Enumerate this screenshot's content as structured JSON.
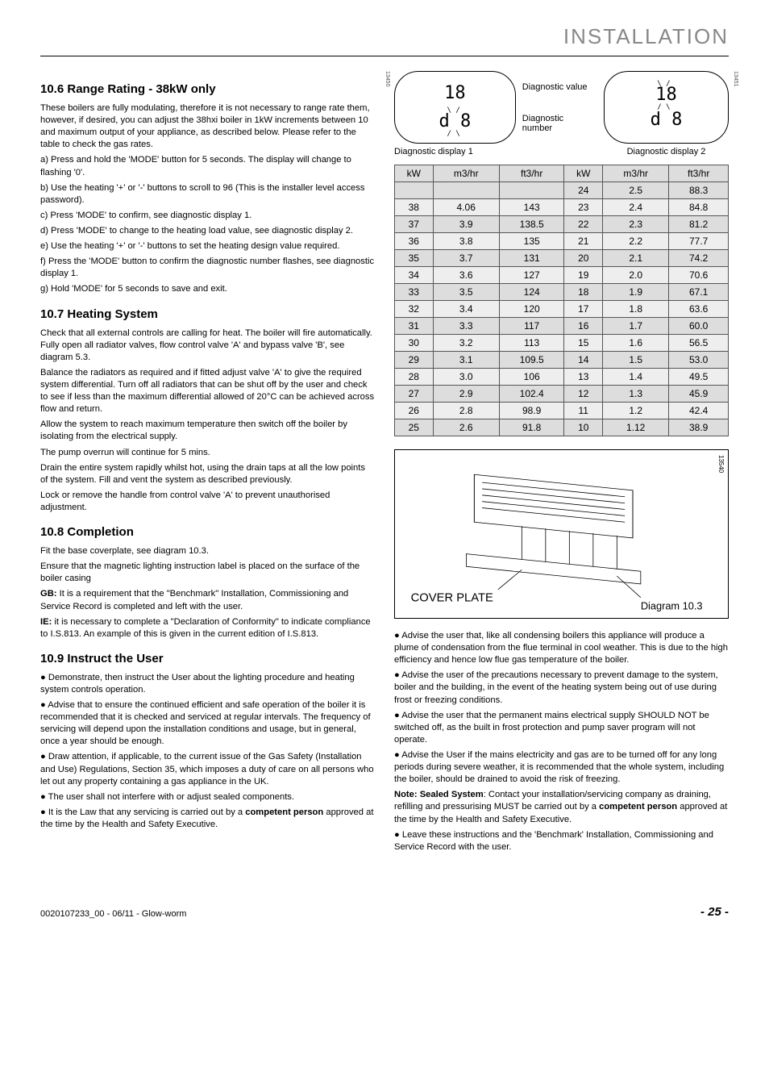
{
  "header": {
    "title": "INSTALLATION"
  },
  "section_10_6": {
    "heading": "10.6 Range Rating - 38kW only",
    "p1": "These boilers are fully modulating, therefore it is not necessary to range rate them, however, if desired, you can adjust the 38hxi boiler in 1kW increments between 10 and maximum output of your appliance, as described below. Please refer to the table to check the gas  rates.",
    "a": "a) Press and hold the  'MODE'  button for 5 seconds.  The display will change to flashing  '0'.",
    "b": "b) Use the heating '+'  or  '-'  buttons to scroll to 96  (This is the installer level access password).",
    "c": "c) Press  'MODE'  to confirm, see diagnostic display 1.",
    "d": "d) Press  'MODE'  to change to the heating load value, see diagnostic display 2.",
    "e": "e) Use the  heating '+'  or  '-'  buttons to set the heating design value required.",
    "f": "f) Press the  'MODE' button to confirm the diagnostic number flashes, see diagnostic display 1.",
    "g": "g) Hold 'MODE' for 5 seconds to save and exit."
  },
  "section_10_7": {
    "heading": "10.7 Heating System",
    "p1": "Check that all external controls are calling for heat.  The boiler will fire automatically. Fully open all radiator valves, flow control valve 'A' and bypass valve 'B', see diagram 5.3.",
    "p2": "Balance the radiators as required and if fitted adjust valve 'A' to give the required system differential. Turn off all radiators that can be shut off by the user and check to see if less than the maximum differential allowed of 20°C can be achieved across flow and return.",
    "p3": "Allow the system to reach maximum temperature then switch off the boiler by isolating from the electrical supply.",
    "p4": "The pump overrun will continue for 5 mins.",
    "p5": "Drain the entire system rapidly whilst hot, using the drain taps at all the low points of the system. Fill and vent the system as described previously.",
    "p6": "Lock or remove the handle from control valve 'A' to prevent unauthorised adjustment."
  },
  "section_10_8": {
    "heading": "10.8 Completion",
    "p1": "Fit the base coverplate, see diagram 10.3.",
    "p2": "Ensure that the magnetic lighting instruction label is placed on the surface of the boiler casing",
    "gb_label": "GB:",
    "gb": " It is a requirement that the \"Benchmark\" Installation, Commissioning and Service Record is completed and left with the user.",
    "ie_label": "IE:",
    "ie": " it is necessary to complete a \"Declaration of Conformity\" to indicate compliance to I.S.813. An example of this is given in the current edition of I.S.813."
  },
  "section_10_9": {
    "heading": "10.9 Instruct the User",
    "b1": "● Demonstrate, then instruct the User about the lighting procedure and heating system controls operation.",
    "b2": "● Advise that to ensure the continued efficient and safe operation of the boiler it is recommended that it is checked and serviced at regular intervals. The frequency of servicing will depend upon the installation conditions and usage, but in general, once a year should be enough.",
    "b3": "● Draw attention, if applicable, to the current issue of the Gas Safety (Installation and Use) Regulations, Section 35, which imposes a duty of care on all persons who let out any property containing a gas appliance in the UK.",
    "b4": "● The user shall not interfere with or adjust sealed components.",
    "b5_pre": "● It is the Law that any servicing is carried out by a ",
    "b5_bold": "competent person",
    "b5_post": " approved at the time by the Health and Safety Executive."
  },
  "right_col": {
    "b1": "● Advise the user that, like all condensing boilers this appliance will produce a plume of condensation from the flue terminal in cool weather. This is due to the high efficiency and hence low flue gas temperature of the boiler.",
    "b2": "● Advise the user of the precautions necessary to prevent damage to the system, boiler and the building, in the event of the heating system being out of use during frost or freezing conditions.",
    "b3": "● Advise the user that the permanent mains electrical supply SHOULD NOT be switched off, as the built in frost protection and pump saver program will not operate.",
    "b4": "● Advise the User if the mains electricity and gas are to be turned off for any long periods during severe weather, it is recommended that the whole system, including the  boiler, should be drained to avoid the risk of freezing.",
    "note_label": "Note: Sealed System",
    "note_post1": ": Contact your installation/servicing company as draining, refilling and pressurising MUST be carried out by a ",
    "note_bold": "competent person",
    "note_post2": " approved at the time by the Health and Safety Executive.",
    "b5": "● Leave these instructions and the 'Benchmark' Installation, Commissioning and Service Record with the user."
  },
  "diagnostics": {
    "side1": "13450",
    "side2": "13451",
    "value_label": "Diagnostic value",
    "number_label": "Diagnostic number",
    "caption1": "Diagnostic display 1",
    "caption2": "Diagnostic display 2",
    "disp1_top": "18",
    "disp1_bot": "d 8",
    "disp2_top": "18",
    "disp2_bot": "d 8"
  },
  "table": {
    "headers": [
      "kW",
      "m3/hr",
      "ft3/hr",
      "kW",
      "m3/hr",
      "ft3/hr"
    ],
    "rows": [
      [
        "",
        "",
        "",
        "24",
        "2.5",
        "88.3"
      ],
      [
        "38",
        "4.06",
        "143",
        "23",
        "2.4",
        "84.8"
      ],
      [
        "37",
        "3.9",
        "138.5",
        "22",
        "2.3",
        "81.2"
      ],
      [
        "36",
        "3.8",
        "135",
        "21",
        "2.2",
        "77.7"
      ],
      [
        "35",
        "3.7",
        "131",
        "20",
        "2.1",
        "74.2"
      ],
      [
        "34",
        "3.6",
        "127",
        "19",
        "2.0",
        "70.6"
      ],
      [
        "33",
        "3.5",
        "124",
        "18",
        "1.9",
        "67.1"
      ],
      [
        "32",
        "3.4",
        "120",
        "17",
        "1.8",
        "63.6"
      ],
      [
        "31",
        "3.3",
        "117",
        "16",
        "1.7",
        "60.0"
      ],
      [
        "30",
        "3.2",
        "113",
        "15",
        "1.6",
        "56.5"
      ],
      [
        "29",
        "3.1",
        "109.5",
        "14",
        "1.5",
        "53.0"
      ],
      [
        "28",
        "3.0",
        "106",
        "13",
        "1.4",
        "49.5"
      ],
      [
        "27",
        "2.9",
        "102.4",
        "12",
        "1.3",
        "45.9"
      ],
      [
        "26",
        "2.8",
        "98.9",
        "11",
        "1.2",
        "42.4"
      ],
      [
        "25",
        "2.6",
        "91.8",
        "10",
        "1.12",
        "38.9"
      ]
    ]
  },
  "cover": {
    "side": "13540",
    "label_left": "COVER PLATE",
    "label_right": "Diagram 10.3"
  },
  "footer": {
    "left": "0020107233_00 - 06/11 - Glow-worm",
    "right": "- 25 -"
  }
}
